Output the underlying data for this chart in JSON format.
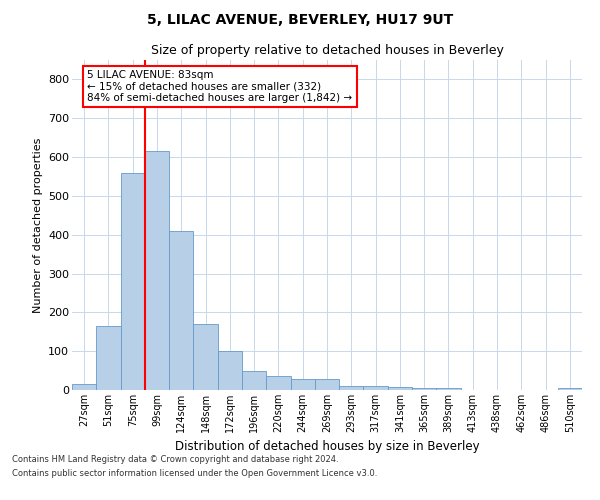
{
  "title": "5, LILAC AVENUE, BEVERLEY, HU17 9UT",
  "subtitle": "Size of property relative to detached houses in Beverley",
  "xlabel": "Distribution of detached houses by size in Beverley",
  "ylabel": "Number of detached properties",
  "footnote1": "Contains HM Land Registry data © Crown copyright and database right 2024.",
  "footnote2": "Contains public sector information licensed under the Open Government Licence v3.0.",
  "bar_labels": [
    "27sqm",
    "51sqm",
    "75sqm",
    "99sqm",
    "124sqm",
    "148sqm",
    "172sqm",
    "196sqm",
    "220sqm",
    "244sqm",
    "269sqm",
    "293sqm",
    "317sqm",
    "341sqm",
    "365sqm",
    "389sqm",
    "413sqm",
    "438sqm",
    "462sqm",
    "486sqm",
    "510sqm"
  ],
  "bar_values": [
    15,
    165,
    560,
    615,
    410,
    170,
    100,
    50,
    37,
    28,
    28,
    10,
    10,
    7,
    5,
    4,
    0,
    0,
    0,
    0,
    5
  ],
  "bar_color": "#b8cfe8",
  "bar_edgecolor": "#6699cc",
  "ylim": [
    0,
    850
  ],
  "yticks": [
    0,
    100,
    200,
    300,
    400,
    500,
    600,
    700,
    800
  ],
  "red_line_x": 2.5,
  "annotation_line1": "5 LILAC AVENUE: 83sqm",
  "annotation_line2": "← 15% of detached houses are smaller (332)",
  "annotation_line3": "84% of semi-detached houses are larger (1,842) →",
  "background_color": "#ffffff",
  "grid_color": "#c8d8ec",
  "title_fontsize": 10,
  "subtitle_fontsize": 9
}
